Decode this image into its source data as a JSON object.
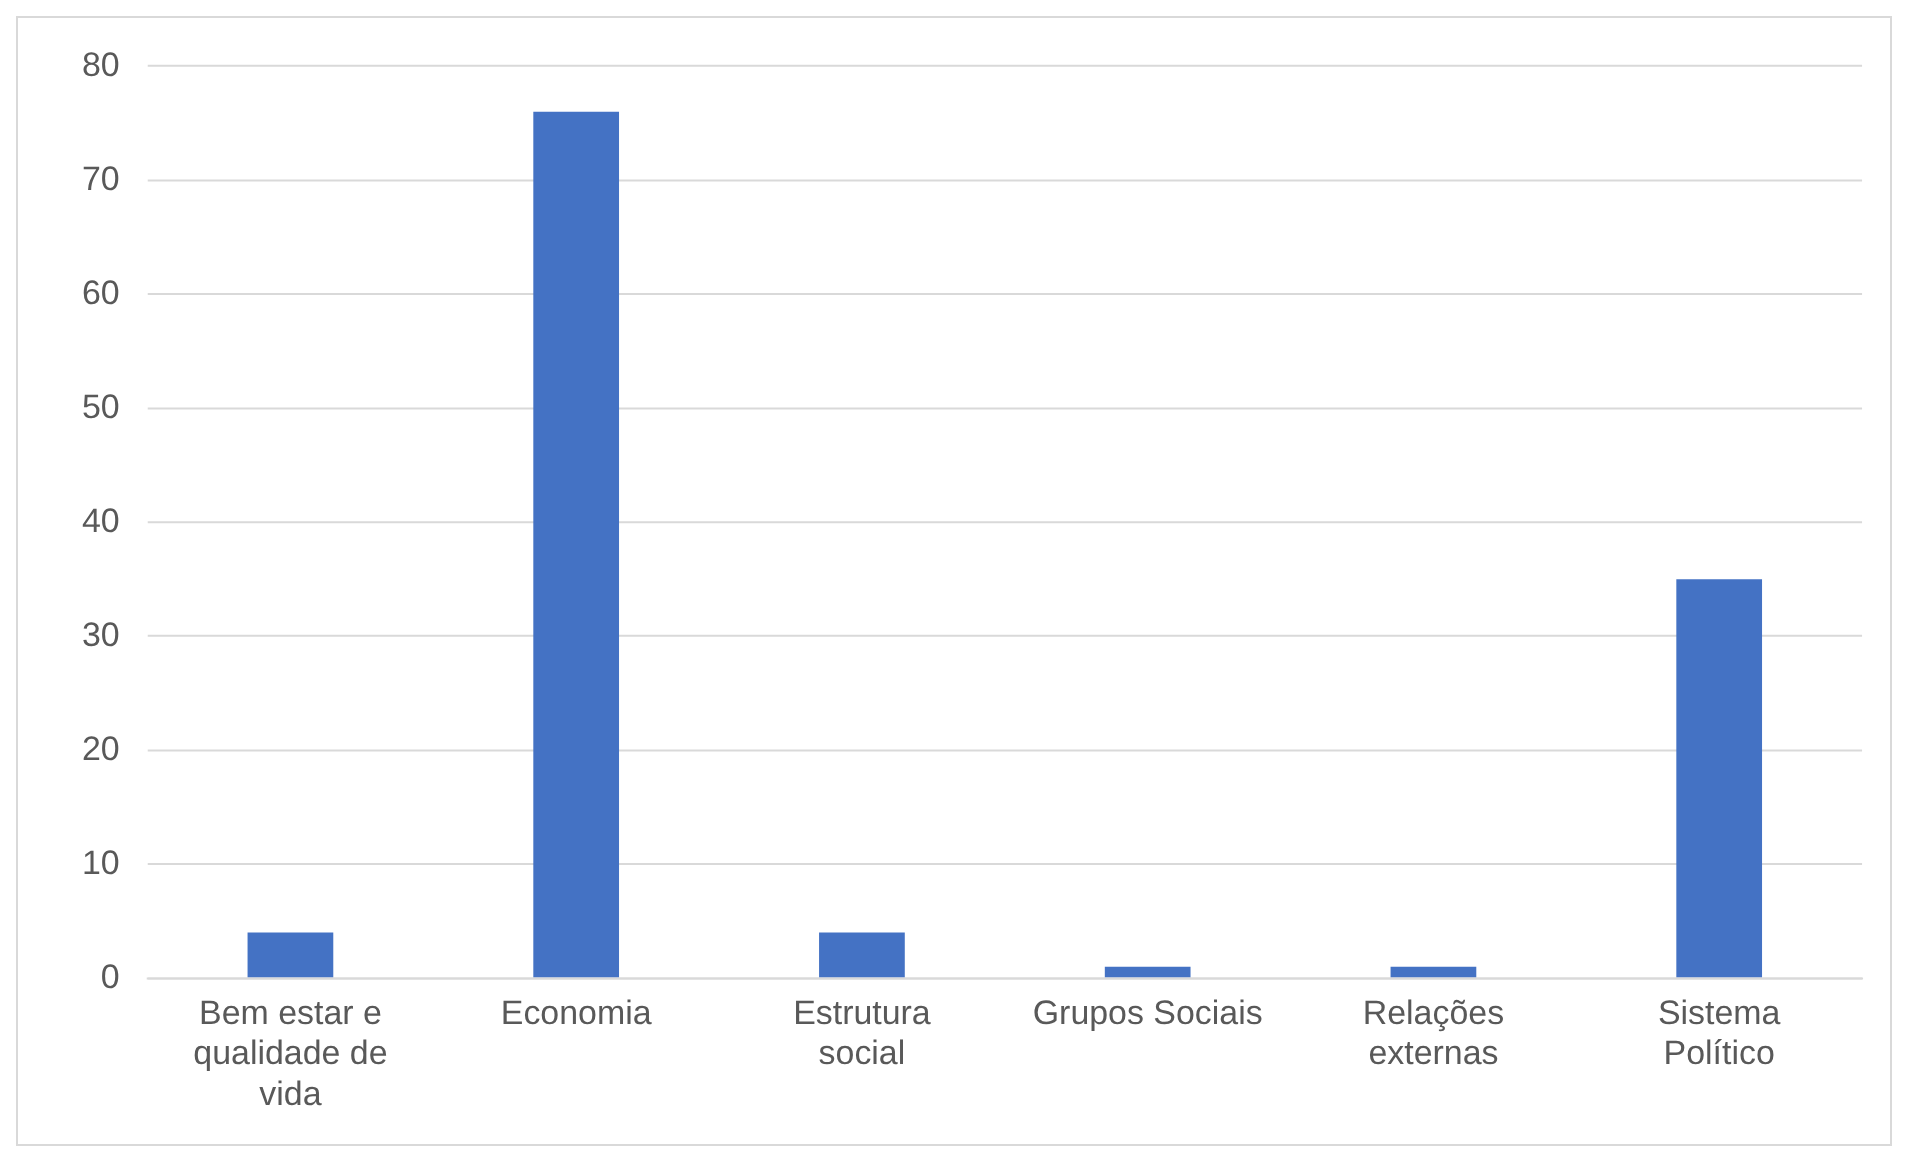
{
  "chart_data": {
    "type": "bar",
    "categories": [
      "Bem estar e qualidade de vida",
      "Economia",
      "Estrutura social",
      "Grupos Sociais",
      "Relações externas",
      "Sistema Político"
    ],
    "values": [
      4,
      76,
      4,
      1,
      1,
      35
    ],
    "color": "#4472c4",
    "ylim": [
      0,
      80
    ],
    "yticks": [
      0,
      10,
      20,
      30,
      40,
      50,
      60,
      70,
      80
    ],
    "grid": "y",
    "legend": false
  }
}
